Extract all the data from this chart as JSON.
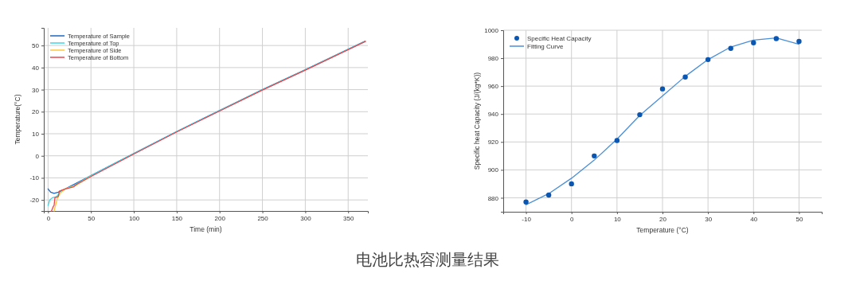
{
  "chart_data": [
    {
      "type": "line",
      "xlabel": "Time (min)",
      "ylabel": "Temperature(°C)",
      "xlim": [
        -5,
        373
      ],
      "ylim": [
        -25,
        58
      ],
      "xticks": [
        0,
        50,
        100,
        150,
        200,
        250,
        300,
        350
      ],
      "yticks": [
        -20,
        -10,
        0,
        10,
        20,
        30,
        40,
        50
      ],
      "grid": true,
      "legend": "top left",
      "line_style": "solid",
      "marker": "none",
      "annotations": [
        "电池比热容测量结果"
      ],
      "series": [
        {
          "name": "Temperature of Sample",
          "color": "#2166c2",
          "x": [
            0,
            3,
            7,
            12,
            20,
            50,
            100,
            150,
            200,
            250,
            300,
            370
          ],
          "values": [
            -15,
            -16.5,
            -17,
            -16.5,
            -15,
            -9,
            1,
            11,
            20.5,
            30,
            39,
            52
          ]
        },
        {
          "name": "Temperature of Top",
          "color": "#3fd6e6",
          "x": [
            0,
            2,
            5,
            10,
            13,
            20,
            30,
            50,
            100,
            150,
            200,
            250,
            300,
            370
          ],
          "values": [
            -22.5,
            -20,
            -19,
            -18.5,
            -17,
            -15,
            -13.5,
            -9,
            1,
            11,
            20.5,
            30,
            39,
            52
          ]
        },
        {
          "name": "Temperature of Side",
          "color": "#ffc83d",
          "x": [
            7,
            9,
            11,
            14,
            20,
            32,
            50
          ],
          "values": [
            -25,
            -22,
            -19,
            -17,
            -15,
            -13.5,
            -9.2
          ]
        },
        {
          "name": "Temperature of Bottom",
          "color": "#e8474c",
          "x": [
            4,
            6,
            7,
            8,
            12,
            13,
            20,
            30,
            33,
            50,
            100,
            150,
            200,
            250,
            300,
            370
          ],
          "values": [
            -25,
            -23,
            -22.5,
            -19,
            -18.5,
            -16,
            -15,
            -14,
            -13,
            -9.4,
            0.8,
            10.8,
            20.3,
            29.8,
            38.8,
            51.8
          ]
        }
      ]
    },
    {
      "type": "scatter",
      "xlabel": "Temperature (°C)",
      "ylabel": "Specific heat Capacity (J/(kg*K))",
      "xlim": [
        -15,
        55
      ],
      "ylim": [
        870,
        1000
      ],
      "xticks": [
        -10,
        0,
        10,
        20,
        30,
        40,
        50
      ],
      "yticks": [
        880,
        900,
        920,
        940,
        960,
        980,
        1000
      ],
      "grid": true,
      "legend": "top left",
      "series": [
        {
          "name": "Specific Heat Capacity",
          "type": "scatter",
          "color": "#0a56b0",
          "x": [
            -10,
            -5,
            0,
            5,
            10,
            15,
            20,
            25,
            30,
            35,
            40,
            45,
            50
          ],
          "values": [
            877,
            882,
            890,
            910,
            921,
            939.5,
            958,
            966.5,
            979,
            987,
            991,
            994,
            992
          ]
        },
        {
          "name": "Fitting Curve",
          "type": "line",
          "color": "#4a8fd8",
          "x": [
            -10,
            -5,
            0,
            5,
            10,
            15,
            20,
            25,
            30,
            35,
            40,
            45,
            50
          ],
          "values": [
            875,
            883,
            894,
            907,
            922,
            939,
            953,
            967,
            979,
            988,
            993,
            994.5,
            990
          ]
        }
      ]
    }
  ]
}
